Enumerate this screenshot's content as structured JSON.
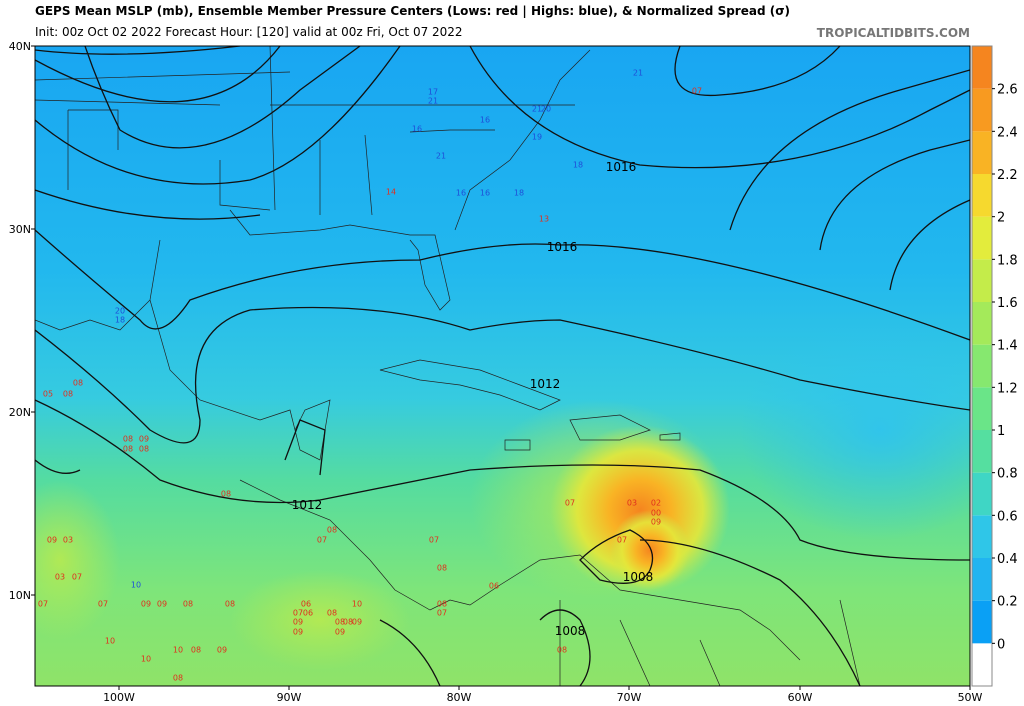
{
  "header": {
    "title": "GEPS Mean MSLP (mb), Ensemble Member Pressure Centers (Lows: red | Highs: blue), & Normalized Spread (σ)",
    "subtitle": "Init: 00z Oct 02 2022   Forecast Hour: [120]   valid at 00z Fri, Oct 07 2022",
    "credit": "TROPICALTIDBITS.COM"
  },
  "latitude_labels": [
    "40N",
    "30N",
    "20N",
    "10N"
  ],
  "longitude_labels": [
    "100W",
    "90W",
    "80W",
    "70W",
    "60W",
    "50W"
  ],
  "contour_labels": [
    "1016",
    "1016",
    "1012",
    "1012",
    "1008",
    "1008"
  ],
  "member_centers": {
    "highs": [
      "21",
      "17",
      "21",
      "16",
      "21",
      "20",
      "16",
      "19",
      "18",
      "21",
      "16",
      "16",
      "18",
      "20",
      "18",
      "10"
    ],
    "lows": [
      "07",
      "14",
      "13",
      "05",
      "08",
      "08",
      "08",
      "09",
      "08",
      "08",
      "08",
      "07",
      "03",
      "02",
      "00",
      "09",
      "07",
      "09",
      "03",
      "03",
      "07",
      "07",
      "08",
      "06",
      "07",
      "07",
      "09",
      "09",
      "08",
      "08",
      "06",
      "10",
      "08",
      "07",
      "06",
      "07",
      "08",
      "09",
      "08",
      "08",
      "09",
      "09",
      "09",
      "10",
      "10",
      "08",
      "09",
      "08",
      "10",
      "08",
      "08",
      "07"
    ]
  },
  "colorbar": {
    "lim": [
      -0.2,
      2.8
    ],
    "ticks": [
      0,
      0.2,
      0.4,
      0.6,
      0.8,
      1,
      1.2,
      1.4,
      1.6,
      1.8,
      2,
      2.2,
      2.4,
      2.6
    ]
  }
}
